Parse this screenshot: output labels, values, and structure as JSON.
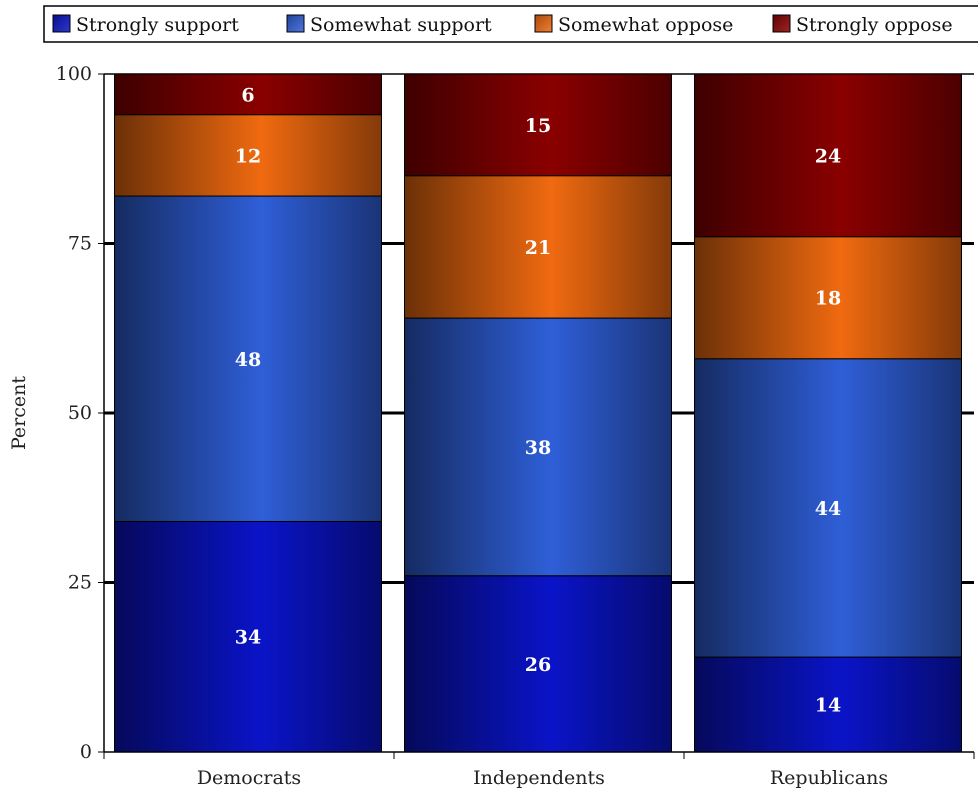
{
  "chart_data": {
    "type": "bar",
    "stacked": true,
    "orientation": "vertical",
    "categories": [
      "Democrats",
      "Independents",
      "Republicans"
    ],
    "series": [
      {
        "name": "Strongly support",
        "values": [
          34,
          26,
          14
        ],
        "color": "#0a14c8"
      },
      {
        "name": "Somewhat support",
        "values": [
          48,
          38,
          44
        ],
        "color": "#2f5fd8"
      },
      {
        "name": "Somewhat oppose",
        "values": [
          12,
          21,
          18
        ],
        "color": "#f06a10"
      },
      {
        "name": "Strongly oppose",
        "values": [
          6,
          15,
          24
        ],
        "color": "#8a0000"
      }
    ],
    "ylabel": "Percent",
    "xlabel": "",
    "ylim": [
      0,
      100
    ],
    "yticks": [
      0,
      25,
      50,
      75,
      100
    ],
    "gridlines": true,
    "legend_position": "top"
  }
}
